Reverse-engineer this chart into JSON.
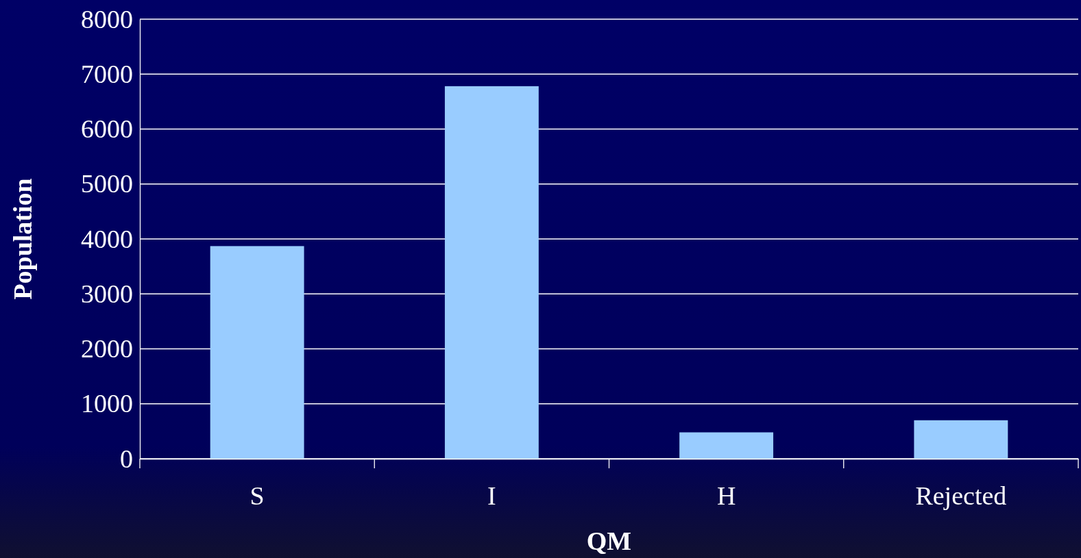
{
  "chart_data": {
    "type": "bar",
    "xlabel": "QM",
    "ylabel": "Population",
    "categories": [
      "S",
      "I",
      "H",
      "Rejected"
    ],
    "values": [
      3870,
      6780,
      480,
      700
    ],
    "color": "#99ccff",
    "ylim": [
      0,
      8000
    ],
    "yticks": [
      0,
      1000,
      2000,
      3000,
      4000,
      5000,
      6000,
      7000,
      8000
    ],
    "grid": "y"
  }
}
